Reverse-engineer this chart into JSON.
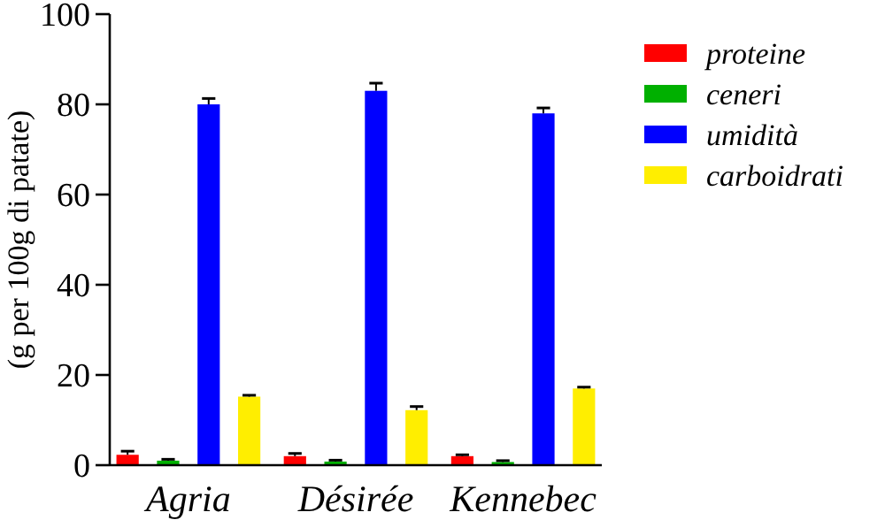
{
  "chart_data": {
    "type": "bar",
    "ylabel": "(g per 100g di patate)",
    "categories": [
      "Agria",
      "Désirée",
      "Kennebec"
    ],
    "series": [
      {
        "name": "proteine",
        "color": "#ff0000",
        "values": [
          2.3,
          2.0,
          2.0
        ],
        "errors": [
          0.8,
          0.6,
          0.3
        ]
      },
      {
        "name": "ceneri",
        "color": "#00b000",
        "values": [
          1.0,
          0.8,
          0.7
        ],
        "errors": [
          0.3,
          0.3,
          0.3
        ]
      },
      {
        "name": "umidità",
        "color": "#0000ff",
        "values": [
          80,
          83,
          78
        ],
        "errors": [
          1.3,
          1.7,
          1.2
        ]
      },
      {
        "name": "carboidrati",
        "color": "#ffee00",
        "values": [
          15.2,
          12.2,
          17
        ],
        "errors": [
          0.3,
          0.8,
          0.3
        ]
      }
    ],
    "ylim": [
      0,
      100
    ],
    "yticks": [
      0,
      20,
      40,
      60,
      80,
      100
    ],
    "legend": "top right"
  }
}
